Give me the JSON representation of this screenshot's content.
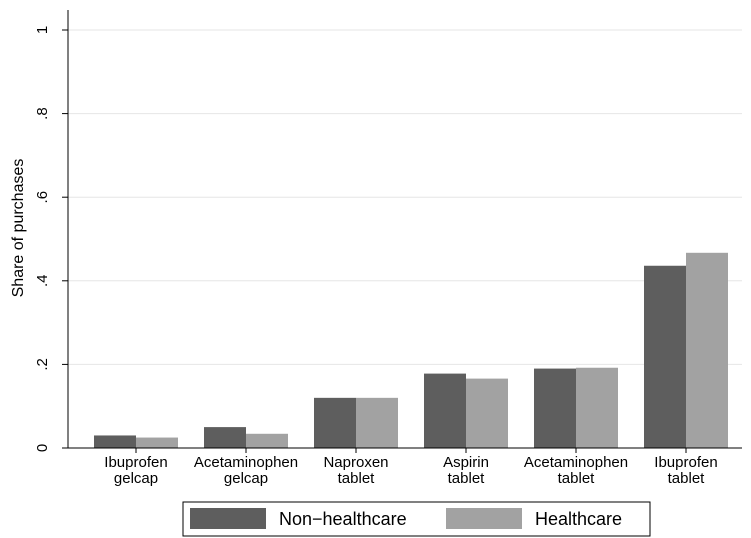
{
  "chart_data": {
    "type": "bar",
    "title": "",
    "xlabel": "",
    "ylabel": "Share of purchases",
    "ylim": [
      0,
      1
    ],
    "yticks": [
      0,
      0.2,
      0.4,
      0.6,
      0.8,
      1
    ],
    "ytick_labels": [
      "0",
      ".2",
      ".4",
      ".6",
      ".8",
      "1"
    ],
    "grid": true,
    "legend_position": "bottom",
    "categories": [
      [
        "Ibuprofen",
        "gelcap"
      ],
      [
        "Acetaminophen",
        "gelcap"
      ],
      [
        "Naproxen",
        "tablet"
      ],
      [
        "Aspirin",
        "tablet"
      ],
      [
        "Acetaminophen",
        "tablet"
      ],
      [
        "Ibuprofen",
        "tablet"
      ]
    ],
    "series": [
      {
        "name": "Non−healthcare",
        "color": "#5e5e5e",
        "values": [
          0.03,
          0.05,
          0.12,
          0.178,
          0.19,
          0.436
        ]
      },
      {
        "name": "Healthcare",
        "color": "#a2a2a2",
        "values": [
          0.025,
          0.034,
          0.12,
          0.166,
          0.192,
          0.467
        ]
      }
    ]
  }
}
